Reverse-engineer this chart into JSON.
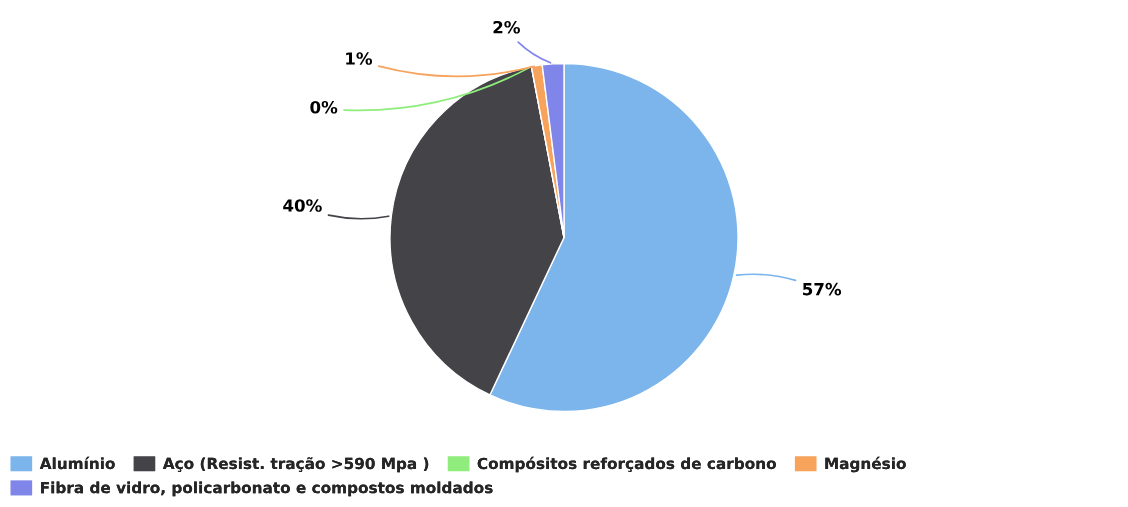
{
  "chart_data": {
    "type": "pie",
    "categories": [
      "Alumínio",
      "Aço (Resist. tração >590 Mpa )",
      "Compósitos reforçados de carbono",
      "Magnésio",
      "Fibra de vidro, policarbonato e compostos moldados"
    ],
    "values": [
      57,
      40,
      0,
      1,
      2
    ],
    "colors": [
      "#7cb5ec",
      "#434348",
      "#90ed7d",
      "#f7a35c",
      "#8085e9"
    ],
    "value_labels": [
      "57%",
      "40%",
      "0%",
      "1%",
      "2%"
    ],
    "legend": "bottom"
  }
}
